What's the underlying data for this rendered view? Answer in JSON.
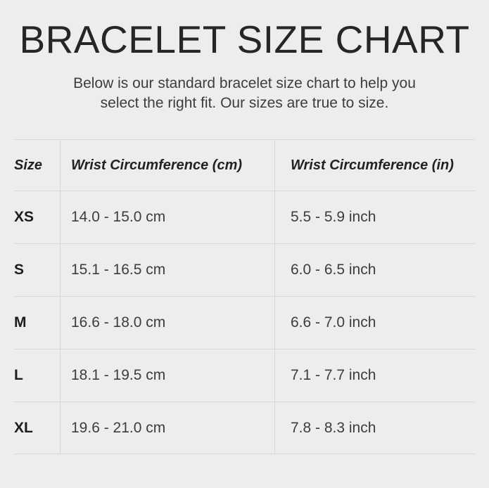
{
  "page": {
    "title": "BRACELET SIZE CHART",
    "subtitle_line1": "Below is our standard bracelet size chart to help you",
    "subtitle_line2": "select the right fit. Our sizes are true to size."
  },
  "table": {
    "headers": {
      "size": "Size",
      "cm": "Wrist Circumference (cm)",
      "inch": "Wrist Circumference (in)"
    },
    "rows": [
      {
        "size": "XS",
        "cm": "14.0 - 15.0 cm",
        "inch": "5.5 - 5.9 inch"
      },
      {
        "size": "S",
        "cm": "15.1 - 16.5 cm",
        "inch": "6.0 - 6.5 inch"
      },
      {
        "size": "M",
        "cm": "16.6 - 18.0 cm",
        "inch": "6.6 - 7.0 inch"
      },
      {
        "size": "L",
        "cm": "18.1 - 19.5 cm",
        "inch": "7.1 - 7.7 inch"
      },
      {
        "size": "XL",
        "cm": "19.6 - 21.0 cm",
        "inch": "7.8 - 8.3 inch"
      }
    ]
  },
  "colors": {
    "background": "#ededed",
    "grid_line": "#d8d8d8",
    "title_text": "#262626",
    "body_text": "#3d3d3d",
    "label_text": "#1d1d1d"
  },
  "chart_data": {
    "type": "table",
    "title": "BRACELET SIZE CHART",
    "subtitle": "Below is our standard bracelet size chart to help you select the right fit. Our sizes are true to size.",
    "columns": [
      "Size",
      "Wrist Circumference (cm)",
      "Wrist Circumference (in)"
    ],
    "rows": [
      [
        "XS",
        "14.0 - 15.0 cm",
        "5.5 - 5.9 inch"
      ],
      [
        "S",
        "15.1 - 16.5 cm",
        "6.0 - 6.5 inch"
      ],
      [
        "M",
        "16.6 - 18.0 cm",
        "6.6 - 7.0 inch"
      ],
      [
        "L",
        "18.1 - 19.5 cm",
        "7.1 - 7.7 inch"
      ],
      [
        "XL",
        "19.6 - 21.0 cm",
        "7.8 - 8.3 inch"
      ]
    ],
    "layout": {
      "grid": true,
      "column_dividers": true,
      "header_style": "bold-italic",
      "row_count": 5
    }
  }
}
